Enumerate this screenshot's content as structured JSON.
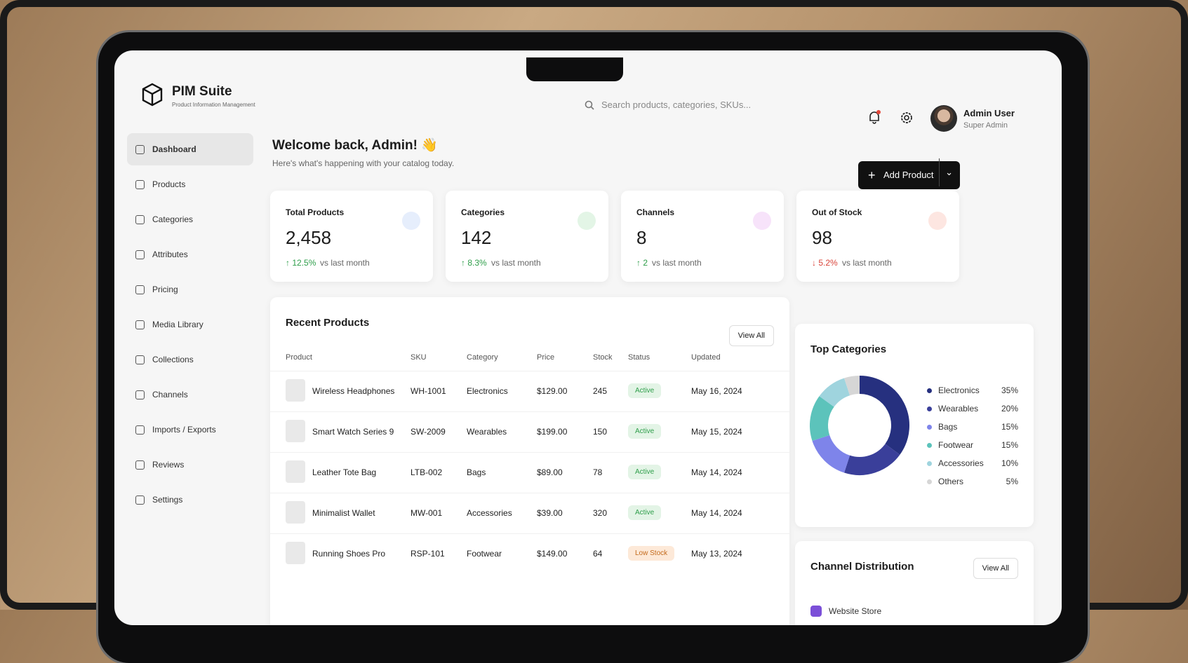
{
  "header": {
    "app_name": "PIM Suite",
    "app_subtitle": "Product Information Management",
    "search_placeholder": "Search products, categories, SKUs...",
    "user_name": "Admin User",
    "user_role": "Super Admin"
  },
  "sidebar": {
    "items": [
      "Dashboard",
      "Products",
      "Categories",
      "Attributes",
      "Pricing",
      "Media Library",
      "Collections",
      "Channels",
      "Imports / Exports",
      "Reviews",
      "Settings"
    ]
  },
  "welcome": {
    "title": "Welcome back, Admin! 👋",
    "subtitle": "Here's what's happening with your catalog today."
  },
  "add_product_button": "Add Product",
  "stats": [
    {
      "label": "Total Products",
      "value": "2,458",
      "change": "12.5%",
      "change_note": "vs last month"
    },
    {
      "label": "Categories",
      "value": "142",
      "change": "8.3%",
      "change_note": "vs last month"
    },
    {
      "label": "Channels",
      "value": "8",
      "change": "2",
      "change_note": "vs last month"
    },
    {
      "label": "Out of Stock",
      "value": "98",
      "change": "5.2%",
      "change_note": "vs last month"
    }
  ],
  "recent_products": {
    "title": "Recent Products",
    "view_all": "View All",
    "columns": [
      "Product",
      "SKU",
      "Category",
      "Price",
      "Stock",
      "Status",
      "Updated"
    ],
    "rows": [
      [
        "Wireless Headphones",
        "WH-1001",
        "Electronics",
        "$129.00",
        "245",
        "Active",
        "May 16, 2024"
      ],
      [
        "Smart Watch Series 9",
        "SW-2009",
        "Wearables",
        "$199.00",
        "150",
        "Active",
        "May 15, 2024"
      ],
      [
        "Leather Tote Bag",
        "LTB-002",
        "Bags",
        "$89.00",
        "78",
        "Active",
        "May 14, 2024"
      ],
      [
        "Minimalist Wallet",
        "MW-001",
        "Accessories",
        "$39.00",
        "320",
        "Active",
        "May 14, 2024"
      ],
      [
        "Running Shoes Pro",
        "RSP-101",
        "Footwear",
        "$149.00",
        "64",
        "Low Stock",
        "May 13, 2024"
      ]
    ]
  },
  "top_categories": {
    "title": "Top Categories",
    "type": "donut",
    "categories": [
      "Electronics",
      "Wearables",
      "Bags",
      "Footwear",
      "Accessories",
      "Others"
    ],
    "values": [
      35,
      20,
      15,
      15,
      10,
      5
    ],
    "value_labels": [
      "35%",
      "20%",
      "15%",
      "15%",
      "10%",
      "5%"
    ],
    "colors": [
      "#26307f",
      "#3a3f9a",
      "#7e84ea",
      "#5cc3bb",
      "#9fd4de",
      "#d6d6d6"
    ]
  },
  "channel_distribution": {
    "title": "Channel Distribution",
    "view_all": "View All",
    "items": [
      "Website Store"
    ]
  }
}
